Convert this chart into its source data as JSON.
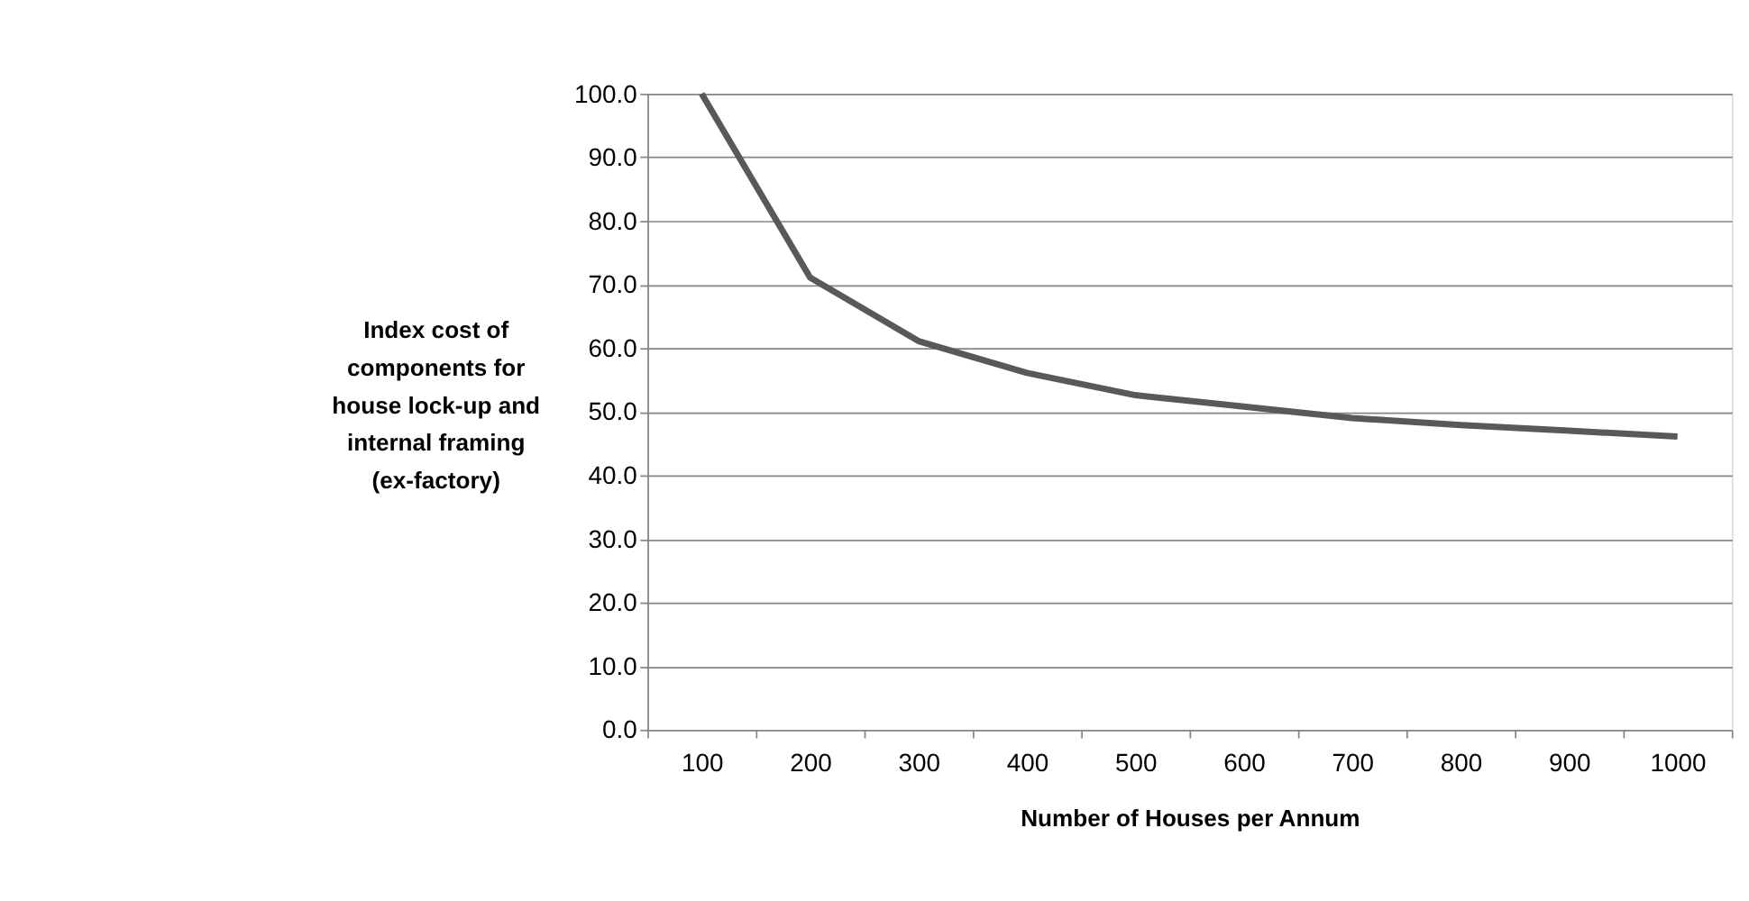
{
  "chart_data": {
    "type": "line",
    "xlabel": "Number of Houses per Annum",
    "ylabel": "Index cost of components for house lock-up and internal framing (ex-factory)",
    "categories": [
      "100",
      "200",
      "300",
      "400",
      "500",
      "600",
      "700",
      "800",
      "900",
      "1000"
    ],
    "series": [
      {
        "color": "#595959",
        "values": [
          100.0,
          71.1,
          61.1,
          56.1,
          52.6,
          50.8,
          49.0,
          47.9,
          47.0,
          46.1
        ]
      }
    ],
    "ylim": [
      0,
      100
    ],
    "yticks": [
      {
        "value": 0,
        "label": "0.0"
      },
      {
        "value": 10,
        "label": "10.0"
      },
      {
        "value": 20,
        "label": "20.0"
      },
      {
        "value": 30,
        "label": "30.0"
      },
      {
        "value": 40,
        "label": "40.0"
      },
      {
        "value": 50,
        "label": "50.0"
      },
      {
        "value": 60,
        "label": "60.0"
      },
      {
        "value": 70,
        "label": "70.0"
      },
      {
        "value": 80,
        "label": "80.0"
      },
      {
        "value": 90,
        "label": "90.0"
      },
      {
        "value": 100,
        "label": "100.0"
      }
    ],
    "grid": "y",
    "legend": false,
    "marker": "none",
    "line_style": "solid"
  }
}
